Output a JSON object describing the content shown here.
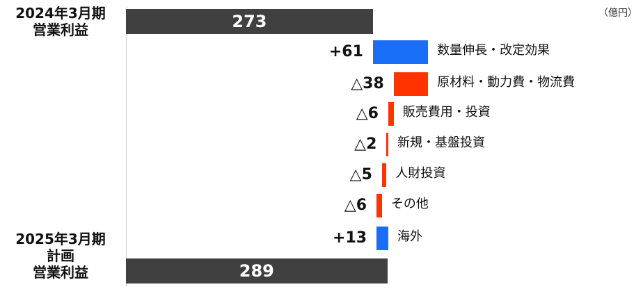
{
  "chart_data": {
    "type": "waterfall",
    "orientation": "horizontal",
    "unit_label": "（億円）",
    "categories": [
      "2024年3月期\n営業利益",
      "数量伸長・改定効果",
      "原材料・動力費・物流費",
      "販売費用・投資",
      "新規・基盤投資",
      "人財投資",
      "その他",
      "海外",
      "2025年3月期\n計画\n営業利益"
    ],
    "measures": [
      "absolute",
      "relative",
      "relative",
      "relative",
      "relative",
      "relative",
      "relative",
      "relative",
      "total"
    ],
    "values": [
      273,
      61,
      -38,
      -6,
      -2,
      -5,
      -6,
      13,
      289
    ],
    "value_labels": [
      "273",
      "+61",
      "△38",
      "△6",
      "△2",
      "△5",
      "△6",
      "+13",
      "289"
    ],
    "colors": {
      "total": "#404040",
      "increase": "#1a6ef5",
      "decrease": "#ff3300"
    },
    "xlim": [
      0,
      300
    ]
  }
}
